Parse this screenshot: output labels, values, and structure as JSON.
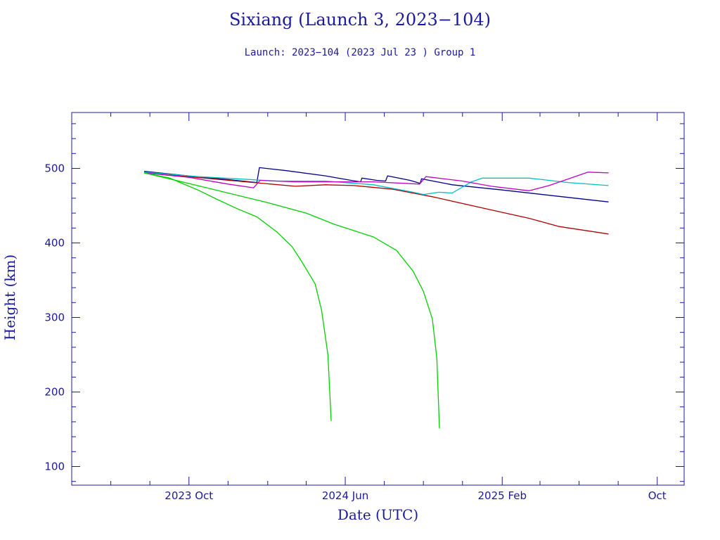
{
  "header": {
    "title": "Sixiang (Launch 3, 2023−104)",
    "subtitle": "Launch: 2023−104  (2023 Jul 23 )  Group 1"
  },
  "chart_data": {
    "type": "line",
    "title": "Sixiang (Launch 3, 2023−104)",
    "subtitle": "Launch: 2023−104  (2023 Jul 23 )  Group 1",
    "xlabel": "Date (UTC)",
    "ylabel": "Height (km)",
    "xlim": [
      "2023-04-01",
      "2025-11-12"
    ],
    "ylim": [
      75,
      575
    ],
    "x_ticks": [
      {
        "date": "2023-10-01",
        "label": "2023 Oct"
      },
      {
        "date": "2024-06-01",
        "label": "2024 Jun"
      },
      {
        "date": "2025-02-01",
        "label": "2025 Feb"
      },
      {
        "date": "2025-10-01",
        "label": "Oct"
      }
    ],
    "y_ticks": [
      100,
      200,
      300,
      400,
      500
    ],
    "grid": false,
    "legend": "none",
    "colors": {
      "frame": "#1a1a9c",
      "text": "#1a1a9c"
    },
    "series": [
      {
        "color": "#00008b",
        "points": [
          [
            "2023-07-23",
            496
          ],
          [
            "2023-09-30",
            490
          ],
          [
            "2023-12-01",
            485
          ],
          [
            "2024-01-15",
            481
          ],
          [
            "2024-01-19",
            501
          ],
          [
            "2024-03-01",
            497
          ],
          [
            "2024-05-01",
            490
          ],
          [
            "2024-06-10",
            484
          ],
          [
            "2024-06-25",
            482
          ],
          [
            "2024-06-27",
            487
          ],
          [
            "2024-07-20",
            484
          ],
          [
            "2024-08-03",
            483
          ],
          [
            "2024-08-06",
            490
          ],
          [
            "2024-09-10",
            484
          ],
          [
            "2024-09-26",
            480
          ],
          [
            "2024-09-28",
            486
          ],
          [
            "2024-11-15",
            478
          ],
          [
            "2025-02-01",
            471
          ],
          [
            "2025-04-15",
            464
          ],
          [
            "2025-07-17",
            455
          ]
        ]
      },
      {
        "color": "#b00000",
        "points": [
          [
            "2023-07-23",
            494
          ],
          [
            "2023-09-30",
            489
          ],
          [
            "2023-12-15",
            483
          ],
          [
            "2024-03-15",
            476
          ],
          [
            "2024-05-01",
            478
          ],
          [
            "2024-06-15",
            477
          ],
          [
            "2024-08-15",
            472
          ],
          [
            "2024-10-15",
            462
          ],
          [
            "2025-01-01",
            447
          ],
          [
            "2025-03-15",
            433
          ],
          [
            "2025-05-01",
            422
          ],
          [
            "2025-07-17",
            412
          ]
        ]
      },
      {
        "color": "#00c0c0",
        "points": [
          [
            "2023-07-23",
            495
          ],
          [
            "2023-10-15",
            489
          ],
          [
            "2023-12-15",
            486
          ],
          [
            "2024-02-15",
            483
          ],
          [
            "2024-05-01",
            483
          ],
          [
            "2024-07-15",
            478
          ],
          [
            "2024-09-15",
            468
          ],
          [
            "2024-10-01",
            465
          ],
          [
            "2024-10-25",
            468
          ],
          [
            "2024-11-15",
            467
          ],
          [
            "2024-12-15",
            482
          ],
          [
            "2025-01-01",
            487
          ],
          [
            "2025-03-15",
            487
          ],
          [
            "2025-05-15",
            481
          ],
          [
            "2025-07-17",
            477
          ]
        ]
      },
      {
        "color": "#c000c0",
        "points": [
          [
            "2023-07-23",
            494
          ],
          [
            "2023-10-01",
            488
          ],
          [
            "2023-12-01",
            479
          ],
          [
            "2024-01-10",
            474
          ],
          [
            "2024-01-20",
            484
          ],
          [
            "2024-03-15",
            482
          ],
          [
            "2024-05-15",
            482
          ],
          [
            "2024-07-15",
            482
          ],
          [
            "2024-09-25",
            479
          ],
          [
            "2024-10-05",
            489
          ],
          [
            "2024-12-01",
            483
          ],
          [
            "2025-01-15",
            476
          ],
          [
            "2025-03-15",
            470
          ],
          [
            "2025-04-15",
            477
          ],
          [
            "2025-06-15",
            495
          ],
          [
            "2025-07-17",
            494
          ]
        ]
      },
      {
        "color": "#00d000",
        "points": [
          [
            "2023-07-23",
            494
          ],
          [
            "2023-09-01",
            487
          ],
          [
            "2023-10-15",
            471
          ],
          [
            "2023-11-15",
            458
          ],
          [
            "2023-12-15",
            446
          ],
          [
            "2024-01-15",
            435
          ],
          [
            "2024-02-15",
            415
          ],
          [
            "2024-03-10",
            395
          ],
          [
            "2024-03-25",
            375
          ],
          [
            "2024-04-15",
            345
          ],
          [
            "2024-04-25",
            310
          ],
          [
            "2024-05-05",
            250
          ],
          [
            "2024-05-10",
            161
          ]
        ]
      },
      {
        "color": "#00d000",
        "points": [
          [
            "2023-07-23",
            494
          ],
          [
            "2023-09-30",
            480
          ],
          [
            "2023-12-01",
            467
          ],
          [
            "2024-02-01",
            454
          ],
          [
            "2024-04-01",
            440
          ],
          [
            "2024-05-15",
            425
          ],
          [
            "2024-07-15",
            408
          ],
          [
            "2024-08-20",
            390
          ],
          [
            "2024-09-15",
            362
          ],
          [
            "2024-10-01",
            335
          ],
          [
            "2024-10-15",
            298
          ],
          [
            "2024-10-22",
            245
          ],
          [
            "2024-10-26",
            151
          ]
        ]
      }
    ]
  }
}
